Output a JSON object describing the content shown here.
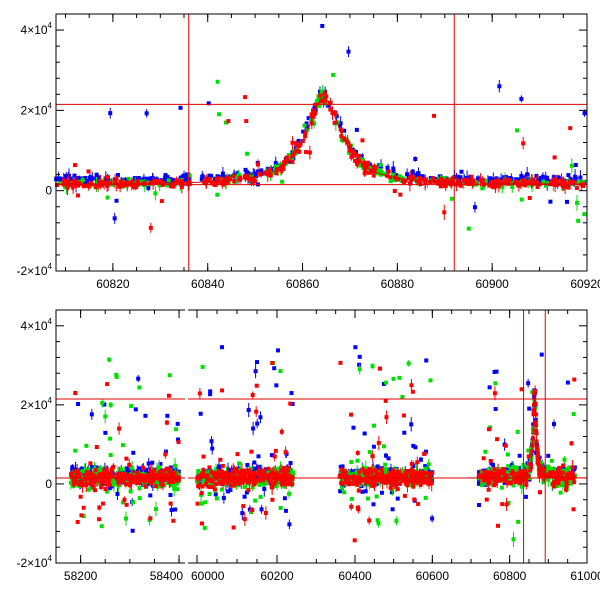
{
  "chart_data": [
    {
      "type": "scatter",
      "title": "",
      "xlabel": "",
      "ylabel": "",
      "xlim": [
        60808,
        60920
      ],
      "ylim": [
        -20000,
        44000
      ],
      "x_ticks": [
        60820,
        60840,
        60860,
        60880,
        60900,
        60920
      ],
      "x_tick_labels": [
        "60820",
        "60840",
        "60860",
        "60880",
        "60900",
        "60920"
      ],
      "y_ticks": [
        {
          "value": -20000,
          "base": "-2×10",
          "exp": "4"
        },
        {
          "value": 0,
          "base": "0",
          "exp": ""
        },
        {
          "value": 20000,
          "base": "2×10",
          "exp": "4"
        },
        {
          "value": 40000,
          "base": "4×10",
          "exp": "4"
        }
      ],
      "vlines": [
        60836,
        60892
      ],
      "hlines": [
        21500,
        1500
      ],
      "model_curve": {
        "t0": 60864.5,
        "baseline": 1500,
        "peak": 21500,
        "tE": 4.5
      },
      "series": [
        {
          "name": "blue",
          "color": "#0000ff"
        },
        {
          "name": "green",
          "color": "#00e000"
        },
        {
          "name": "red",
          "color": "#ff0000"
        }
      ],
      "seed": 7
    },
    {
      "type": "scatter",
      "title": "",
      "xlabel": "",
      "ylabel": "",
      "ylim": [
        -20000,
        44000
      ],
      "segments": [
        {
          "xlim": [
            58150,
            58410
          ],
          "data_x": [
            58180,
            58400
          ],
          "ticks": [
            58200,
            58400
          ],
          "tick_labels": [
            "58200",
            "58400"
          ]
        },
        {
          "xlim": [
            59980,
            60250
          ],
          "data_x": [
            60000,
            60240
          ],
          "ticks": [
            60000,
            60200
          ],
          "tick_labels": [
            "60000",
            "60200"
          ]
        },
        {
          "xlim": [
            60250,
            61000
          ],
          "data_x": [
            60360,
            60600
          ],
          "data_x2": [
            60720,
            60970
          ],
          "ticks": [
            60400,
            60600,
            60800,
            61000
          ],
          "tick_labels": [
            "60400",
            "60600",
            "60800",
            "61000"
          ]
        }
      ],
      "y_ticks": [
        {
          "value": -20000,
          "base": "-2×10",
          "exp": "4"
        },
        {
          "value": 0,
          "base": "0",
          "exp": ""
        },
        {
          "value": 20000,
          "base": "2×10",
          "exp": "4"
        },
        {
          "value": 40000,
          "base": "4×10",
          "exp": "4"
        }
      ],
      "vlines": [
        60836,
        60892
      ],
      "hlines": [
        21500,
        1500
      ],
      "model_curve": {
        "t0": 60864.5,
        "baseline": 1500,
        "peak": 21500,
        "tE": 4.5
      },
      "series": [
        {
          "name": "blue",
          "color": "#0000ff"
        },
        {
          "name": "green",
          "color": "#00e000"
        },
        {
          "name": "red",
          "color": "#ff0000"
        }
      ],
      "seed": 11
    }
  ]
}
